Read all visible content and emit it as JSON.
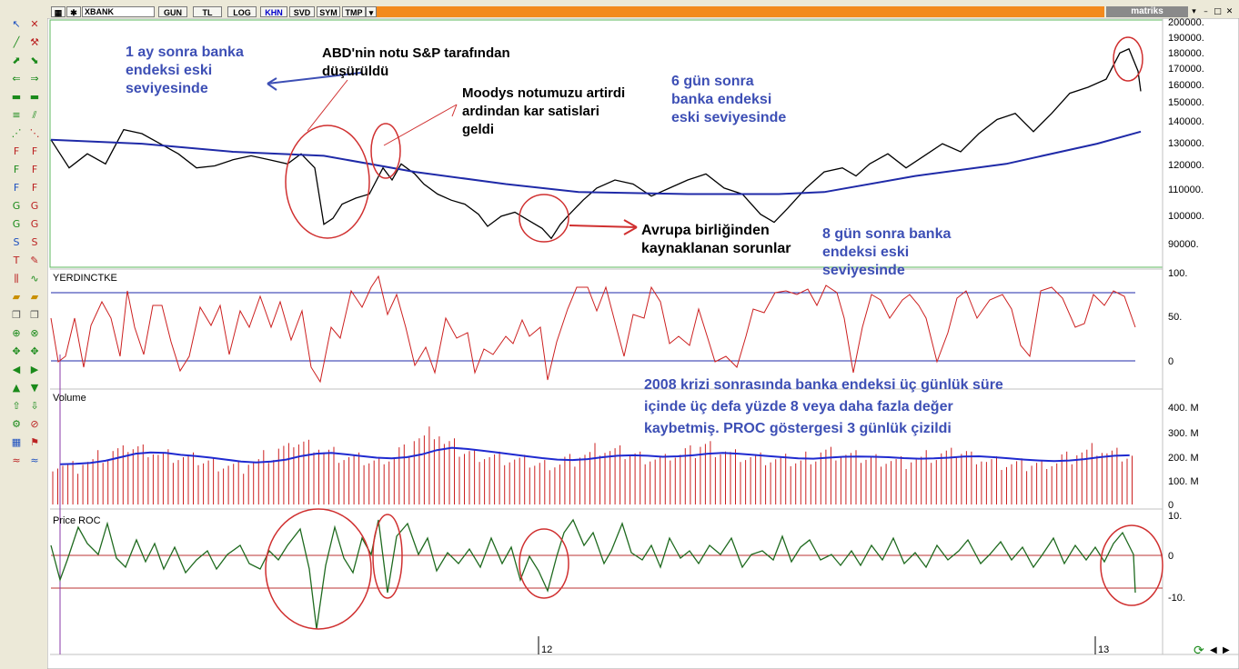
{
  "toolbar": {
    "symbol": "XBANK",
    "buttons": [
      "GUN",
      "TL",
      "LOG",
      "KHN",
      "SVD",
      "SYM",
      "TMP"
    ],
    "active_button": "KHN",
    "brand": "matriks",
    "colors": {
      "title_bar": "#f38a1d",
      "active": "#0000cc"
    }
  },
  "panels": {
    "price": {
      "y_ticks": [
        "200000.",
        "190000.",
        "180000.",
        "170000.",
        "160000.",
        "150000.",
        "140000.",
        "130000.",
        "120000.",
        "110000.",
        "100000.",
        "90000."
      ]
    },
    "osc": {
      "label": "YERDINCTKE",
      "y_ticks": [
        "100.",
        "50.",
        "0"
      ]
    },
    "volume": {
      "label": "Volume",
      "y_ticks": [
        "400. M",
        "300. M",
        "200. M",
        "100. M",
        "0"
      ]
    },
    "roc": {
      "label": "Price ROC",
      "y_ticks": [
        "10.",
        "0",
        "-10."
      ]
    }
  },
  "x_axis": {
    "labels": [
      "12",
      "13"
    ]
  },
  "annotations": {
    "a1": "1 ay sonra banka\nendeksi eski\nseviyesinde",
    "a2": "ABD'nin notu S&P tarafından\ndüşürüldü",
    "a3": "Moodys notumuzu artirdi\nardindan kar satislari\ngeldi",
    "a4": "6 gün sonra\nbanka endeksi\neski seviyesinde",
    "a5": "Avrupa birliğinden\nkaynaklanan sorunlar",
    "a6": "8 gün sonra banka\nendeksi eski\nseviyesinde",
    "a7": "2008 krizi sonrasında banka endeksi üç günlük süre\niçinde üç defa yüzde 8 veya daha fazla değer\nkaybetmiş. PROC göstergesi 3 günlük çizildi"
  },
  "chart_data": {
    "type": "line",
    "x_labels": [
      "12",
      "13"
    ],
    "series": [
      {
        "points": [
          [
            0,
            142000
          ],
          [
            20,
            128000
          ],
          [
            40,
            135000
          ],
          [
            60,
            130000
          ],
          [
            80,
            147000
          ],
          [
            100,
            145000
          ],
          [
            120,
            140000
          ],
          [
            140,
            135000
          ],
          [
            160,
            128000
          ],
          [
            180,
            129000
          ],
          [
            200,
            132000
          ],
          [
            220,
            134000
          ],
          [
            240,
            132000
          ],
          [
            260,
            130000
          ],
          [
            275,
            135000
          ],
          [
            290,
            128000
          ],
          [
            300,
            100000
          ],
          [
            310,
            103000
          ],
          [
            320,
            110000
          ],
          [
            335,
            113000
          ],
          [
            350,
            115000
          ],
          [
            365,
            128000
          ],
          [
            375,
            122000
          ],
          [
            385,
            130000
          ],
          [
            400,
            125000
          ],
          [
            410,
            120000
          ],
          [
            425,
            115000
          ],
          [
            440,
            112000
          ],
          [
            455,
            110000
          ],
          [
            470,
            105000
          ],
          [
            480,
            99000
          ],
          [
            495,
            104000
          ],
          [
            510,
            106000
          ],
          [
            525,
            102000
          ],
          [
            540,
            98000
          ],
          [
            550,
            93000
          ],
          [
            560,
            100000
          ],
          [
            570,
            105000
          ],
          [
            585,
            112000
          ],
          [
            600,
            118000
          ],
          [
            620,
            122000
          ],
          [
            640,
            120000
          ],
          [
            660,
            114000
          ],
          [
            680,
            118000
          ],
          [
            700,
            122000
          ],
          [
            720,
            125000
          ],
          [
            740,
            118000
          ],
          [
            760,
            115000
          ],
          [
            780,
            105000
          ],
          [
            795,
            101000
          ],
          [
            810,
            108000
          ],
          [
            830,
            118000
          ],
          [
            850,
            126000
          ],
          [
            870,
            128000
          ],
          [
            885,
            124000
          ],
          [
            900,
            130000
          ],
          [
            920,
            135000
          ],
          [
            940,
            128000
          ],
          [
            960,
            134000
          ],
          [
            980,
            140000
          ],
          [
            1000,
            136000
          ],
          [
            1020,
            145000
          ],
          [
            1040,
            152000
          ],
          [
            1060,
            155000
          ],
          [
            1080,
            146000
          ],
          [
            1100,
            155000
          ],
          [
            1120,
            165000
          ],
          [
            1140,
            168000
          ],
          [
            1160,
            172000
          ],
          [
            1175,
            185000
          ],
          [
            1185,
            187000
          ],
          [
            1195,
            176000
          ],
          [
            1198,
            166000
          ]
        ]
      },
      {
        "points": [
          [
            0,
            142000
          ],
          [
            100,
            140000
          ],
          [
            200,
            136000
          ],
          [
            300,
            134000
          ],
          [
            400,
            126000
          ],
          [
            500,
            120000
          ],
          [
            580,
            116000
          ],
          [
            700,
            115000
          ],
          [
            800,
            115000
          ],
          [
            850,
            116000
          ],
          [
            950,
            124000
          ],
          [
            1050,
            130000
          ],
          [
            1150,
            140000
          ],
          [
            1198,
            146000
          ]
        ]
      }
    ],
    "volume": [
      170,
      160,
      180,
      200,
      220,
      240,
      230,
      210,
      200,
      190,
      180,
      170,
      160,
      180,
      200,
      230,
      260,
      250,
      220,
      200,
      190,
      180,
      200,
      230,
      280,
      300,
      250,
      220,
      210,
      200,
      190,
      180,
      170,
      175,
      190,
      210,
      230,
      220,
      210,
      200,
      190,
      210,
      220,
      250,
      230,
      210,
      200,
      190,
      185,
      180,
      200,
      220,
      210,
      200,
      195,
      190,
      180,
      190,
      200,
      210,
      220,
      200,
      180,
      170,
      165,
      170,
      180,
      200,
      220,
      230,
      210,
      200
    ],
    "volume_avg": [
      170,
      172,
      176,
      185,
      200,
      215,
      220,
      218,
      210,
      205,
      198,
      190,
      182,
      178,
      182,
      190,
      205,
      215,
      218,
      212,
      205,
      198,
      195,
      200,
      212,
      230,
      240,
      235,
      228,
      220,
      212,
      204,
      196,
      190,
      188,
      192,
      200,
      206,
      208,
      206,
      202,
      204,
      208,
      215,
      218,
      215,
      210,
      205,
      200,
      195,
      194,
      198,
      202,
      203,
      202,
      200,
      196,
      194,
      195,
      198,
      203,
      204,
      200,
      195,
      190,
      186,
      184,
      186,
      192,
      200,
      206,
      208
    ]
  }
}
